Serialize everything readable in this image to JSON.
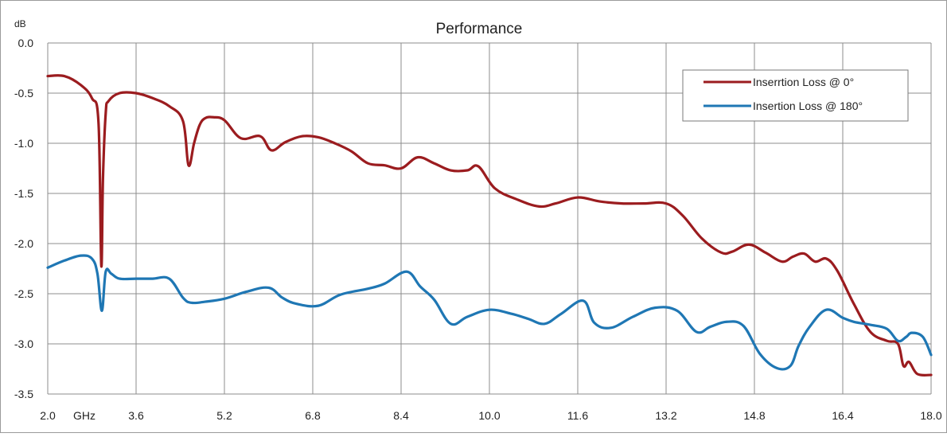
{
  "chart_data": {
    "type": "line",
    "title": "Performance",
    "ylabel": "dB",
    "xunit": "GHz",
    "xlim": [
      2.0,
      18.0
    ],
    "ylim": [
      -3.5,
      0.0
    ],
    "x_ticks": [
      2.0,
      3.6,
      5.2,
      6.8,
      8.4,
      10.0,
      11.6,
      13.2,
      14.8,
      16.4,
      18.0
    ],
    "y_ticks": [
      0.0,
      -0.5,
      -1.0,
      -1.5,
      -2.0,
      -2.5,
      -3.0,
      -3.5
    ],
    "grid": true,
    "legend_position": "top-right",
    "shaded_bands": [],
    "series": [
      {
        "name": "Inserrtion Loss @ 0°",
        "color": "#9b1c1f",
        "x": [
          2.0,
          2.3,
          2.6,
          2.8,
          2.92,
          2.97,
          3.0,
          3.05,
          3.1,
          3.3,
          3.6,
          3.9,
          4.2,
          4.45,
          4.55,
          4.65,
          4.75,
          4.85,
          5.0,
          5.2,
          5.5,
          5.85,
          6.05,
          6.3,
          6.6,
          6.9,
          7.2,
          7.5,
          7.8,
          8.1,
          8.4,
          8.7,
          9.0,
          9.3,
          9.6,
          9.8,
          10.1,
          10.5,
          10.9,
          11.2,
          11.6,
          12.0,
          12.4,
          12.8,
          13.2,
          13.5,
          13.85,
          14.2,
          14.4,
          14.7,
          15.0,
          15.3,
          15.5,
          15.7,
          15.9,
          16.1,
          16.3,
          16.6,
          16.9,
          17.2,
          17.4,
          17.5,
          17.6,
          17.75,
          18.0
        ],
        "y": [
          -0.33,
          -0.33,
          -0.42,
          -0.55,
          -0.8,
          -2.22,
          -1.35,
          -0.7,
          -0.58,
          -0.5,
          -0.5,
          -0.55,
          -0.63,
          -0.78,
          -1.22,
          -1.0,
          -0.82,
          -0.75,
          -0.74,
          -0.77,
          -0.95,
          -0.93,
          -1.07,
          -0.99,
          -0.93,
          -0.94,
          -1.0,
          -1.08,
          -1.2,
          -1.22,
          -1.25,
          -1.14,
          -1.2,
          -1.27,
          -1.27,
          -1.23,
          -1.45,
          -1.56,
          -1.63,
          -1.6,
          -1.54,
          -1.58,
          -1.6,
          -1.6,
          -1.6,
          -1.72,
          -1.95,
          -2.09,
          -2.08,
          -2.01,
          -2.09,
          -2.18,
          -2.13,
          -2.1,
          -2.18,
          -2.15,
          -2.27,
          -2.6,
          -2.88,
          -2.97,
          -3.0,
          -3.22,
          -3.18,
          -3.3,
          -3.31
        ]
      },
      {
        "name": "Insertion Loss @ 180°",
        "color": "#1f77b4",
        "x": [
          2.0,
          2.3,
          2.6,
          2.8,
          2.9,
          2.98,
          3.05,
          3.15,
          3.3,
          3.6,
          3.9,
          4.2,
          4.45,
          4.6,
          4.85,
          5.2,
          5.6,
          6.0,
          6.25,
          6.5,
          6.9,
          7.3,
          7.8,
          8.1,
          8.5,
          8.75,
          9.0,
          9.3,
          9.6,
          10.0,
          10.4,
          10.7,
          11.0,
          11.3,
          11.7,
          11.9,
          12.2,
          12.6,
          13.0,
          13.4,
          13.75,
          14.0,
          14.3,
          14.6,
          14.9,
          15.2,
          15.45,
          15.6,
          15.8,
          16.1,
          16.4,
          16.6,
          16.9,
          17.2,
          17.4,
          17.55,
          17.65,
          17.85,
          18.0
        ],
        "y": [
          -2.24,
          -2.17,
          -2.12,
          -2.15,
          -2.3,
          -2.67,
          -2.28,
          -2.3,
          -2.35,
          -2.35,
          -2.35,
          -2.35,
          -2.54,
          -2.59,
          -2.58,
          -2.55,
          -2.48,
          -2.44,
          -2.54,
          -2.6,
          -2.62,
          -2.51,
          -2.45,
          -2.4,
          -2.28,
          -2.43,
          -2.56,
          -2.8,
          -2.73,
          -2.66,
          -2.7,
          -2.75,
          -2.8,
          -2.7,
          -2.57,
          -2.79,
          -2.84,
          -2.73,
          -2.64,
          -2.67,
          -2.88,
          -2.83,
          -2.78,
          -2.82,
          -3.1,
          -3.24,
          -3.22,
          -3.02,
          -2.83,
          -2.66,
          -2.74,
          -2.78,
          -2.81,
          -2.85,
          -2.97,
          -2.93,
          -2.89,
          -2.93,
          -3.11
        ]
      }
    ]
  }
}
